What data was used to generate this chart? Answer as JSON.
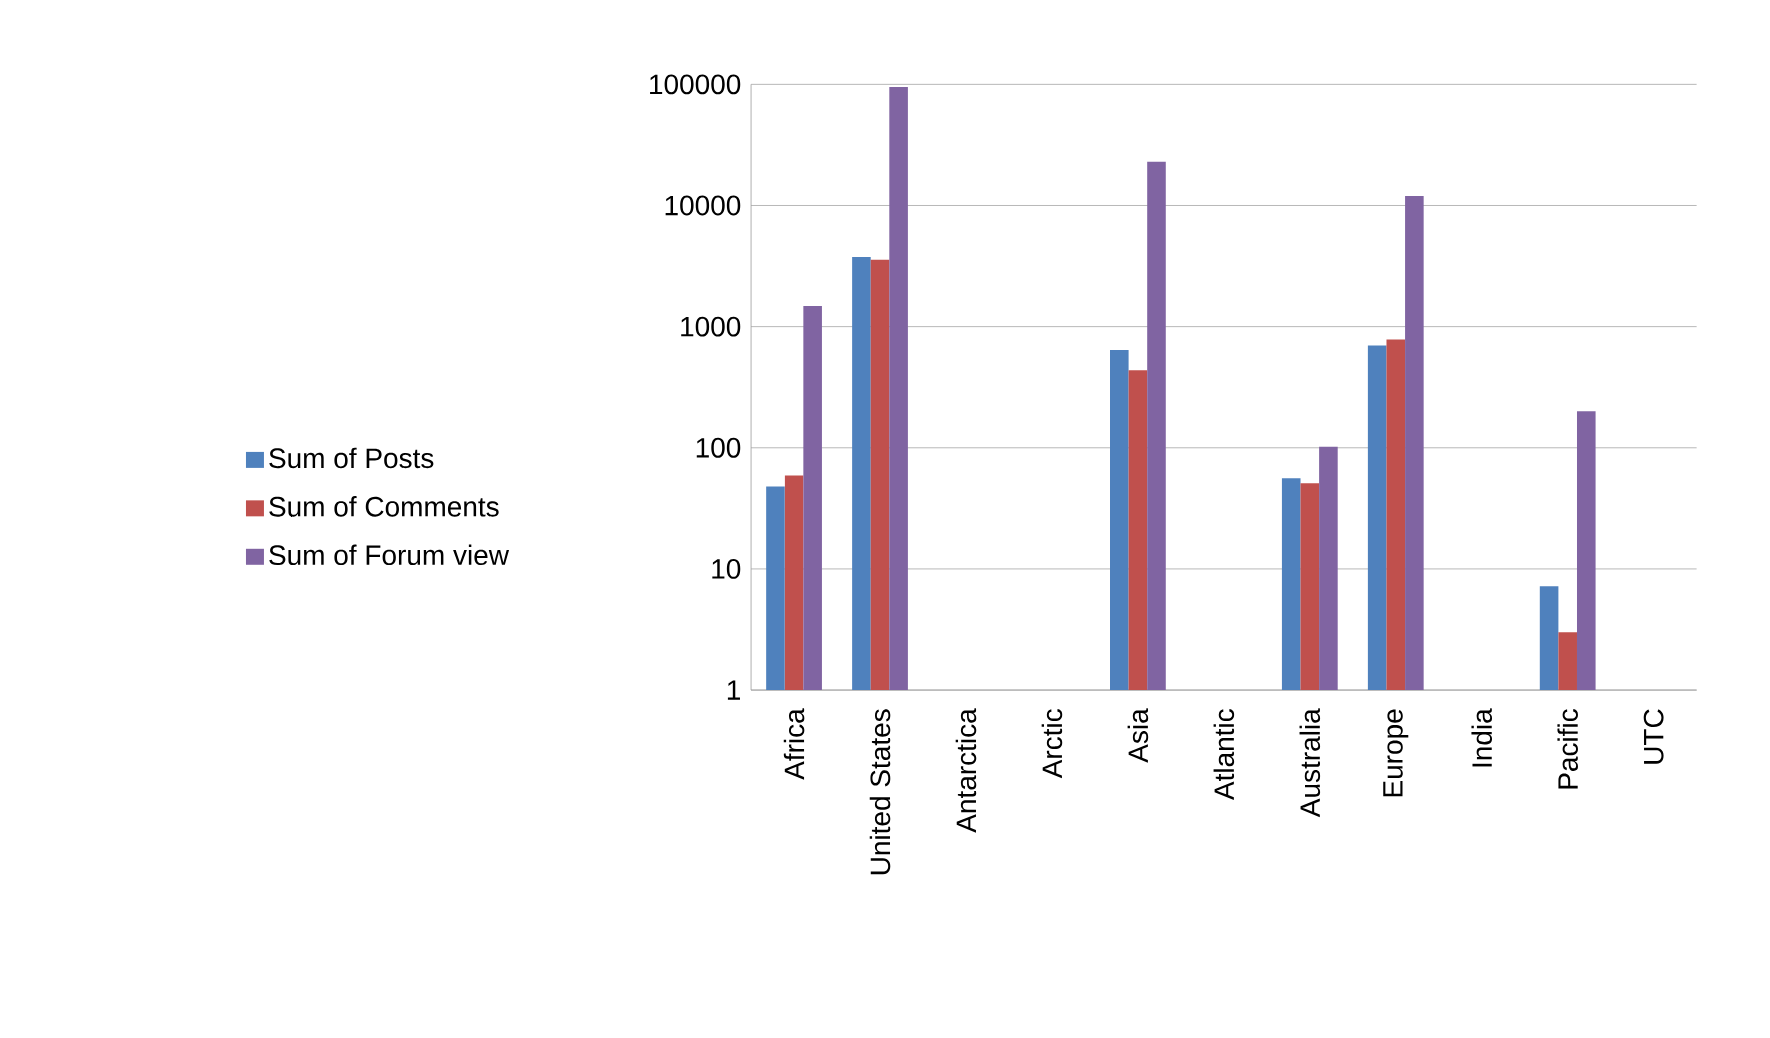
{
  "chart_data": {
    "type": "bar",
    "log": "y",
    "grid": "y",
    "legend": "left",
    "categories": [
      "Africa",
      "United States",
      "Antarctica",
      "Arctic",
      "Asia",
      "Atlantic",
      "Australia",
      "Europe",
      "India",
      "Pacific",
      "UTC"
    ],
    "ylim": [
      1,
      100000
    ],
    "yticks": [
      1,
      10,
      100,
      1000,
      10000,
      100000
    ],
    "series": [
      {
        "name": "Sum of Posts",
        "color": "#4f81bd",
        "values": [
          48,
          3760,
          null,
          null,
          640,
          null,
          56,
          700,
          null,
          7.2,
          null
        ]
      },
      {
        "name": "Sum of Comments",
        "color": "#c0504d",
        "values": [
          59,
          3560,
          null,
          null,
          436,
          null,
          51,
          785,
          null,
          3,
          null
        ]
      },
      {
        "name": "Sum of Forum view",
        "color": "#8064a2",
        "values": [
          1480,
          95000,
          null,
          null,
          23000,
          null,
          102,
          12000,
          null,
          200,
          null
        ]
      }
    ]
  }
}
